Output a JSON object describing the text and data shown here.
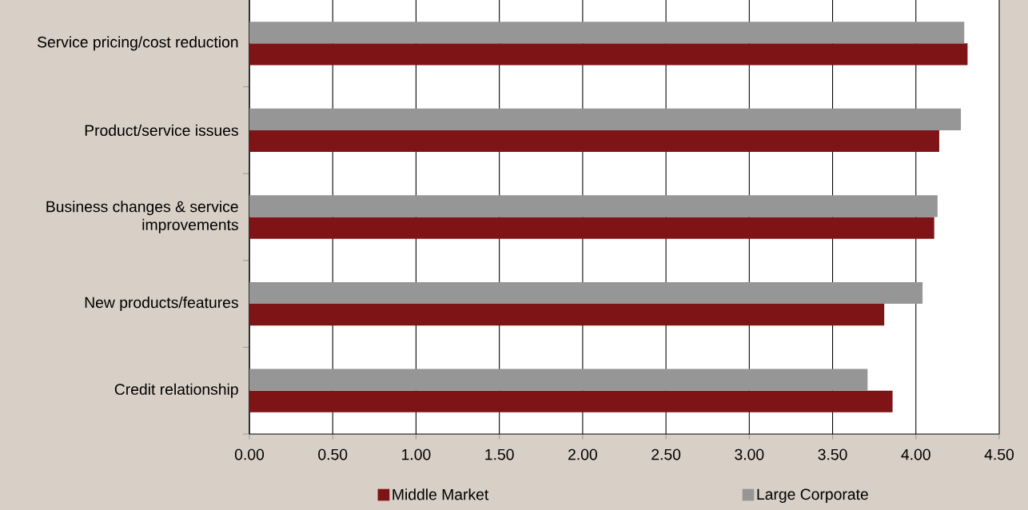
{
  "chart_data": {
    "type": "bar",
    "orientation": "horizontal",
    "categories": [
      "Service pricing/cost reduction",
      "Product/service issues",
      "Business changes & service improvements",
      "New products/features",
      "Credit relationship"
    ],
    "series": [
      {
        "name": "Middle Market",
        "color": "#7f1416",
        "values": [
          4.31,
          4.14,
          4.11,
          3.81,
          3.86
        ]
      },
      {
        "name": "Large Corporate",
        "color": "#969696",
        "values": [
          4.29,
          4.27,
          4.13,
          4.04,
          3.71
        ]
      }
    ],
    "xlim": [
      0,
      4.5
    ],
    "xticks": [
      {
        "value": 0,
        "label": "0.00"
      },
      {
        "value": 0.5,
        "label": "0.50"
      },
      {
        "value": 1,
        "label": "1.00"
      },
      {
        "value": 1.5,
        "label": "1.50"
      },
      {
        "value": 2,
        "label": "2.00"
      },
      {
        "value": 2.5,
        "label": "2.50"
      },
      {
        "value": 3,
        "label": "3.00"
      },
      {
        "value": 3.5,
        "label": "3.50"
      },
      {
        "value": 4,
        "label": "4.00"
      },
      {
        "value": 4.5,
        "label": "4.50"
      }
    ],
    "grid": "x",
    "legend": "bottom"
  }
}
